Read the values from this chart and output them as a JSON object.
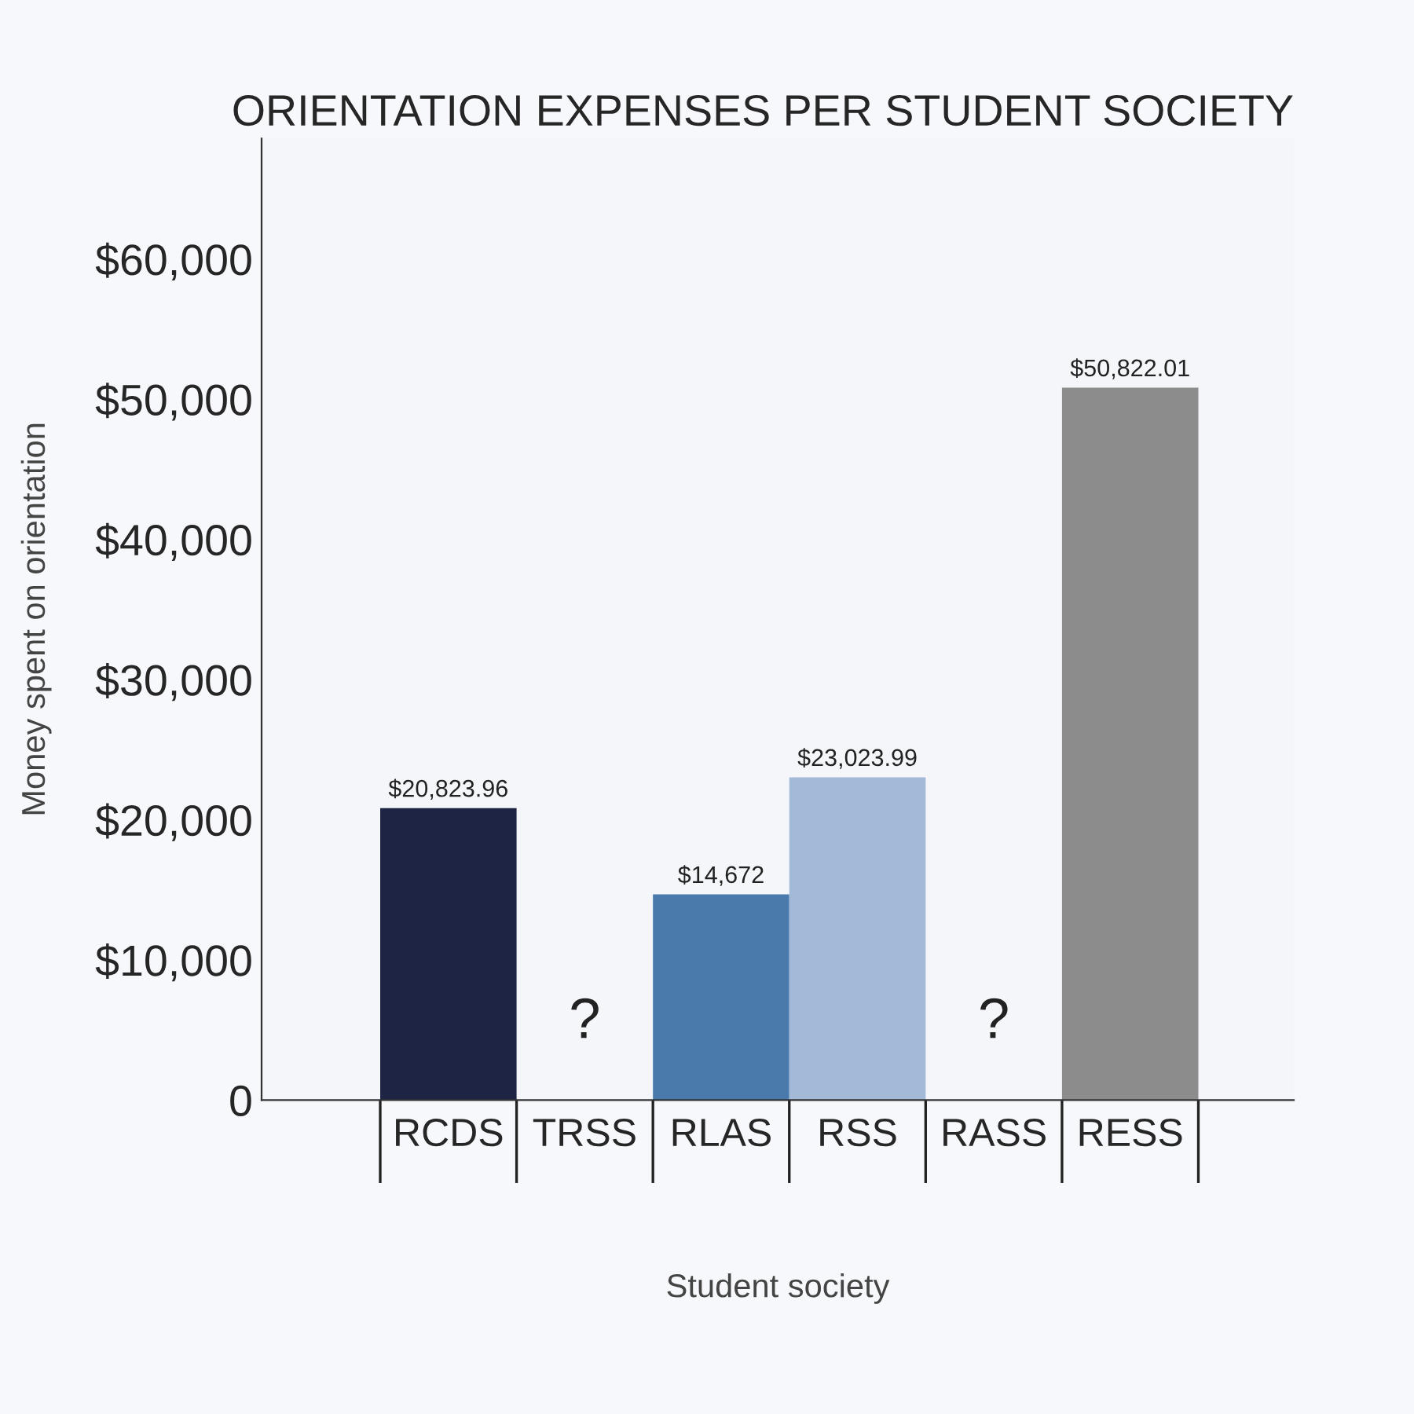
{
  "chart_data": {
    "type": "bar",
    "title": "ORIENTATION EXPENSES PER STUDENT SOCIETY",
    "xlabel": "Student society",
    "ylabel": "Money spent on orientation",
    "categories": [
      "RCDS",
      "TRSS",
      "RLAS",
      "RSS",
      "RASS",
      "RESS"
    ],
    "values": [
      20823.96,
      null,
      14672,
      23023.99,
      null,
      50822.01
    ],
    "colors": [
      "#1e2444",
      null,
      "#4a7aab",
      "#a3b9d8",
      null,
      "#8c8c8c"
    ],
    "value_labels": [
      "$20,823.96",
      null,
      "$14,672",
      "$23,023.99",
      null,
      "$50,822.01"
    ],
    "annotations": [
      "?",
      "?"
    ],
    "ylim": [
      0,
      68600
    ],
    "yticks": [
      0,
      {
        "value": 10000,
        "label": "$10,000"
      },
      {
        "value": 20000,
        "label": "$20,000"
      },
      {
        "value": 30000,
        "label": "$30,000"
      },
      {
        "value": 40000,
        "label": "$40,000"
      },
      {
        "value": 50000,
        "label": "$50,000"
      },
      {
        "value": 60000,
        "label": "$60,000"
      }
    ],
    "grid": false,
    "legend": false
  }
}
